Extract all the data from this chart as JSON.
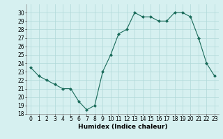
{
  "x": [
    0,
    1,
    2,
    3,
    4,
    5,
    6,
    7,
    8,
    9,
    10,
    11,
    12,
    13,
    14,
    15,
    16,
    17,
    18,
    19,
    20,
    21,
    22,
    23
  ],
  "y": [
    23.5,
    22.5,
    22.0,
    21.5,
    21.0,
    21.0,
    19.5,
    18.5,
    19.0,
    23.0,
    25.0,
    27.5,
    28.0,
    30.0,
    29.5,
    29.5,
    29.0,
    29.0,
    30.0,
    30.0,
    29.5,
    27.0,
    24.0,
    22.5
  ],
  "line_color": "#1a6b5a",
  "marker": "D",
  "marker_size": 2,
  "xlabel": "Humidex (Indice chaleur)",
  "xlim": [
    -0.5,
    23.5
  ],
  "ylim": [
    18,
    31
  ],
  "yticks": [
    18,
    19,
    20,
    21,
    22,
    23,
    24,
    25,
    26,
    27,
    28,
    29,
    30
  ],
  "xticks": [
    0,
    1,
    2,
    3,
    4,
    5,
    6,
    7,
    8,
    9,
    10,
    11,
    12,
    13,
    14,
    15,
    16,
    17,
    18,
    19,
    20,
    21,
    22,
    23
  ],
  "bg_color": "#d6f0f0",
  "grid_color": "#b0d8d8",
  "label_fontsize": 6.5,
  "tick_fontsize": 5.5
}
